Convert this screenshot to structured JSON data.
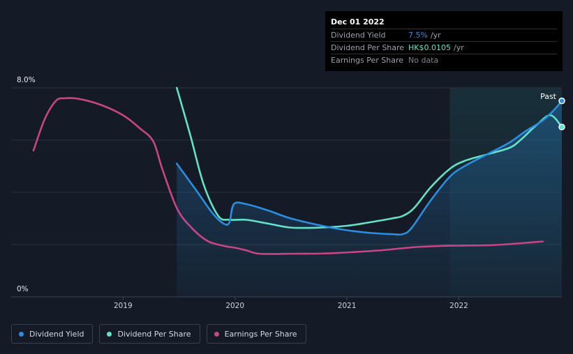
{
  "chart_data": {
    "type": "line",
    "y_axis": {
      "min": 0,
      "max": 8,
      "top_label": "8.0%",
      "bottom_label": "0%"
    },
    "x_axis": {
      "min": 2018.2,
      "max": 2022.92,
      "ticks": [
        {
          "value": 2019,
          "label": "2019"
        },
        {
          "value": 2020,
          "label": "2020"
        },
        {
          "value": 2021,
          "label": "2021"
        },
        {
          "value": 2022,
          "label": "2022"
        }
      ]
    },
    "past_region_start": 2021.92,
    "past_label": "Past",
    "series": [
      {
        "key": "yield",
        "name": "Dividend Yield",
        "color": "#2a8fe0",
        "filled": true,
        "end_marker": true,
        "points": [
          [
            2019.48,
            5.1
          ],
          [
            2019.65,
            4.1
          ],
          [
            2019.8,
            3.2
          ],
          [
            2019.9,
            2.8
          ],
          [
            2019.95,
            2.85
          ],
          [
            2019.99,
            3.55
          ],
          [
            2020.1,
            3.55
          ],
          [
            2020.3,
            3.3
          ],
          [
            2020.5,
            3.0
          ],
          [
            2020.8,
            2.7
          ],
          [
            2021.0,
            2.55
          ],
          [
            2021.2,
            2.45
          ],
          [
            2021.4,
            2.4
          ],
          [
            2021.5,
            2.4
          ],
          [
            2021.58,
            2.65
          ],
          [
            2021.75,
            3.7
          ],
          [
            2021.92,
            4.6
          ],
          [
            2022.05,
            5.0
          ],
          [
            2022.25,
            5.45
          ],
          [
            2022.45,
            5.9
          ],
          [
            2022.6,
            6.35
          ],
          [
            2022.75,
            6.75
          ],
          [
            2022.85,
            7.15
          ],
          [
            2022.92,
            7.5
          ]
        ]
      },
      {
        "key": "dps",
        "name": "Dividend Per Share",
        "color": "#63e2c8",
        "filled": false,
        "end_marker": true,
        "points": [
          [
            2019.48,
            8.0
          ],
          [
            2019.6,
            6.2
          ],
          [
            2019.72,
            4.3
          ],
          [
            2019.85,
            3.1
          ],
          [
            2019.95,
            2.95
          ],
          [
            2020.1,
            2.95
          ],
          [
            2020.3,
            2.8
          ],
          [
            2020.5,
            2.65
          ],
          [
            2020.75,
            2.65
          ],
          [
            2021.0,
            2.72
          ],
          [
            2021.2,
            2.85
          ],
          [
            2021.4,
            3.0
          ],
          [
            2021.5,
            3.1
          ],
          [
            2021.6,
            3.4
          ],
          [
            2021.75,
            4.2
          ],
          [
            2021.92,
            4.9
          ],
          [
            2022.05,
            5.2
          ],
          [
            2022.25,
            5.45
          ],
          [
            2022.45,
            5.7
          ],
          [
            2022.55,
            6.0
          ],
          [
            2022.7,
            6.6
          ],
          [
            2022.82,
            6.95
          ],
          [
            2022.92,
            6.5
          ]
        ]
      },
      {
        "key": "eps",
        "name": "Earnings Per Share",
        "color": "#c94585",
        "filled": false,
        "end_marker": false,
        "points": [
          [
            2018.2,
            5.6
          ],
          [
            2018.3,
            6.8
          ],
          [
            2018.4,
            7.5
          ],
          [
            2018.48,
            7.6
          ],
          [
            2018.6,
            7.58
          ],
          [
            2018.8,
            7.35
          ],
          [
            2019.0,
            6.95
          ],
          [
            2019.15,
            6.45
          ],
          [
            2019.27,
            5.95
          ],
          [
            2019.35,
            4.9
          ],
          [
            2019.48,
            3.4
          ],
          [
            2019.6,
            2.7
          ],
          [
            2019.75,
            2.15
          ],
          [
            2019.9,
            1.95
          ],
          [
            2020.0,
            1.88
          ],
          [
            2020.1,
            1.78
          ],
          [
            2020.22,
            1.65
          ],
          [
            2020.5,
            1.65
          ],
          [
            2020.8,
            1.66
          ],
          [
            2021.0,
            1.7
          ],
          [
            2021.3,
            1.78
          ],
          [
            2021.6,
            1.9
          ],
          [
            2021.85,
            1.95
          ],
          [
            2022.0,
            1.96
          ],
          [
            2022.3,
            1.98
          ],
          [
            2022.55,
            2.05
          ],
          [
            2022.75,
            2.12
          ]
        ]
      }
    ]
  },
  "tooltip": {
    "date": "Dec 01 2022",
    "rows": [
      {
        "key": "yield",
        "label": "Dividend Yield",
        "value": "7.5%",
        "unit": "/yr",
        "color": "#2a8fe0"
      },
      {
        "key": "dps",
        "label": "Dividend Per Share",
        "value": "HK$0.0105",
        "unit": "/yr",
        "color": "#63e2c8"
      },
      {
        "key": "eps",
        "label": "Earnings Per Share",
        "value": "No data",
        "unit": "",
        "color": "#7d848e"
      }
    ]
  },
  "legend": [
    {
      "key": "yield",
      "label": "Dividend Yield",
      "color": "#2a8fe0"
    },
    {
      "key": "dps",
      "label": "Dividend Per Share",
      "color": "#63e2c8"
    },
    {
      "key": "eps",
      "label": "Earnings Per Share",
      "color": "#c94585"
    }
  ]
}
